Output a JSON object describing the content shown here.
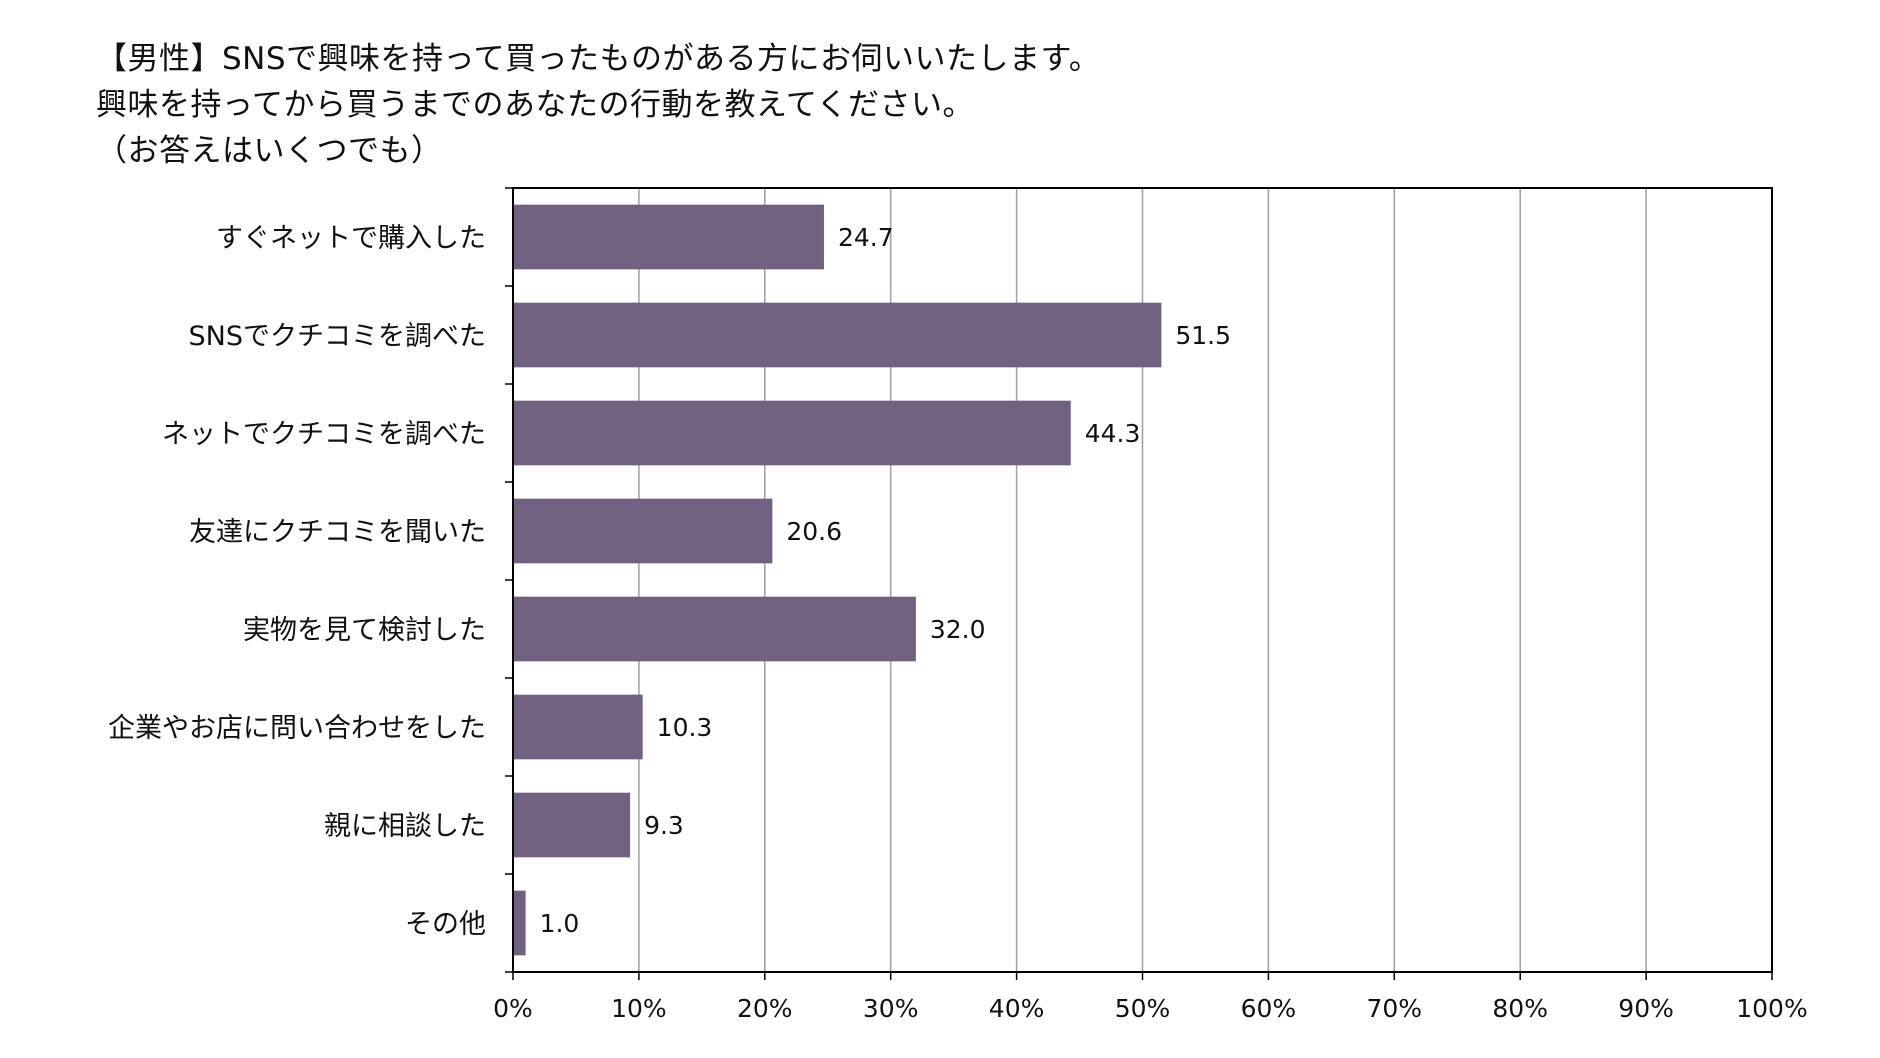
{
  "chart_data": {
    "type": "bar",
    "orientation": "horizontal",
    "title_lines": [
      "【男性】SNSで興味を持って買ったものがある方にお伺いいたします。",
      "興味を持ってから買うまでのあなたの行動を教えてください。",
      "（お答えはいくつでも）"
    ],
    "categories": [
      "すぐネットで購入した",
      "SNSでクチコミを調べた",
      "ネットでクチコミを調べた",
      "友達にクチコミを聞いた",
      "実物を見て検討した",
      "企業やお店に問い合わせをした",
      "親に相談した",
      "その他"
    ],
    "values": [
      24.7,
      51.5,
      44.3,
      20.6,
      32.0,
      10.3,
      9.3,
      1.0
    ],
    "value_labels": [
      "24.7",
      "51.5",
      "44.3",
      "20.6",
      "32.0",
      "10.3",
      "9.3",
      "1.0"
    ],
    "xlim": [
      0,
      100
    ],
    "xticks": [
      "0%",
      "10%",
      "20%",
      "30%",
      "40%",
      "50%",
      "60%",
      "70%",
      "80%",
      "90%",
      "100%"
    ],
    "xlabel": "",
    "ylabel": "",
    "grid": true,
    "bar_color": "#6f617f",
    "grid_color": "#a0a0a0",
    "axis_color": "#000000"
  }
}
